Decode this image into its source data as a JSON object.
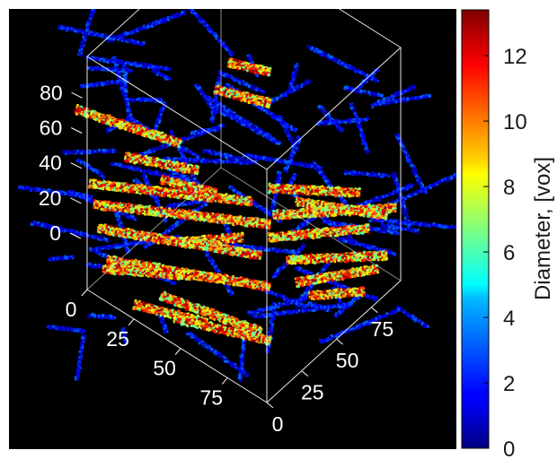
{
  "chart_data": {
    "type": "scatter3d",
    "title": "",
    "axes": {
      "z": {
        "ticks": [
          "0",
          "20",
          "40",
          "60",
          "80"
        ],
        "range": [
          0,
          96
        ]
      },
      "x": {
        "ticks": [
          "0",
          "25",
          "50",
          "75"
        ],
        "range": [
          0,
          96
        ]
      },
      "y": {
        "ticks": [
          "0",
          "25",
          "50",
          "75"
        ],
        "range": [
          0,
          96
        ]
      }
    },
    "background": "#000000",
    "bounding_box_color": "#ffffff",
    "colorbar": {
      "label": "Diameter, [vox]",
      "colormap": "jet",
      "range": [
        0,
        13.4
      ],
      "ticks": [
        "0",
        "2",
        "4",
        "6",
        "8",
        "10",
        "12"
      ]
    }
  }
}
